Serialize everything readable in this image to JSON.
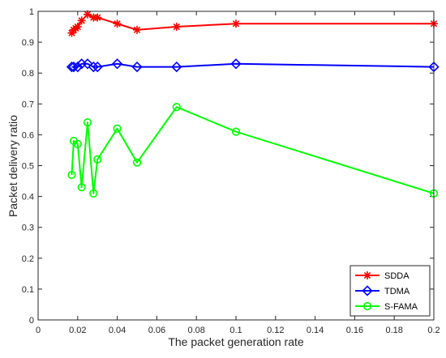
{
  "chart_data": {
    "type": "line",
    "xlabel": "The packet generation rate",
    "ylabel": "Packet delivery ratio",
    "xlim": [
      0,
      0.2
    ],
    "ylim": [
      0,
      1
    ],
    "grid": false,
    "legend_position": "bottom-right",
    "x_ticks": [
      0,
      0.02,
      0.04,
      0.06,
      0.08,
      0.1,
      0.12,
      0.14,
      0.16,
      0.18,
      0.2
    ],
    "x_tick_labels": [
      "0",
      "0.02",
      "0.04",
      "0.06",
      "0.08",
      "0.1",
      "0.12",
      "0.14",
      "0.16",
      "0.18",
      "0.2"
    ],
    "y_ticks": [
      0,
      0.1,
      0.2,
      0.3,
      0.4,
      0.5,
      0.6,
      0.7,
      0.8,
      0.9,
      1
    ],
    "y_tick_labels": [
      "0",
      "0.1",
      "0.2",
      "0.3",
      "0.4",
      "0.5",
      "0.6",
      "0.7",
      "0.8",
      "0.9",
      "1"
    ],
    "series": [
      {
        "name": "SDDA",
        "color": "#ff0000",
        "marker": "star",
        "x": [
          0.017,
          0.018,
          0.019,
          0.02,
          0.022,
          0.025,
          0.028,
          0.03,
          0.04,
          0.05,
          0.07,
          0.1,
          0.2
        ],
        "y": [
          0.93,
          0.94,
          0.945,
          0.95,
          0.97,
          0.99,
          0.98,
          0.98,
          0.96,
          0.94,
          0.95,
          0.96,
          0.96
        ]
      },
      {
        "name": "TDMA",
        "color": "#0000ff",
        "marker": "diamond",
        "x": [
          0.017,
          0.018,
          0.02,
          0.022,
          0.025,
          0.028,
          0.03,
          0.04,
          0.05,
          0.07,
          0.1,
          0.2
        ],
        "y": [
          0.82,
          0.82,
          0.82,
          0.83,
          0.83,
          0.82,
          0.82,
          0.83,
          0.82,
          0.82,
          0.83,
          0.82
        ]
      },
      {
        "name": "S-FAMA",
        "color": "#00ff00",
        "marker": "circle",
        "x": [
          0.017,
          0.018,
          0.02,
          0.022,
          0.025,
          0.028,
          0.03,
          0.04,
          0.05,
          0.07,
          0.1,
          0.2
        ],
        "y": [
          0.47,
          0.58,
          0.57,
          0.43,
          0.64,
          0.41,
          0.52,
          0.62,
          0.51,
          0.69,
          0.61,
          0.41
        ]
      }
    ]
  }
}
